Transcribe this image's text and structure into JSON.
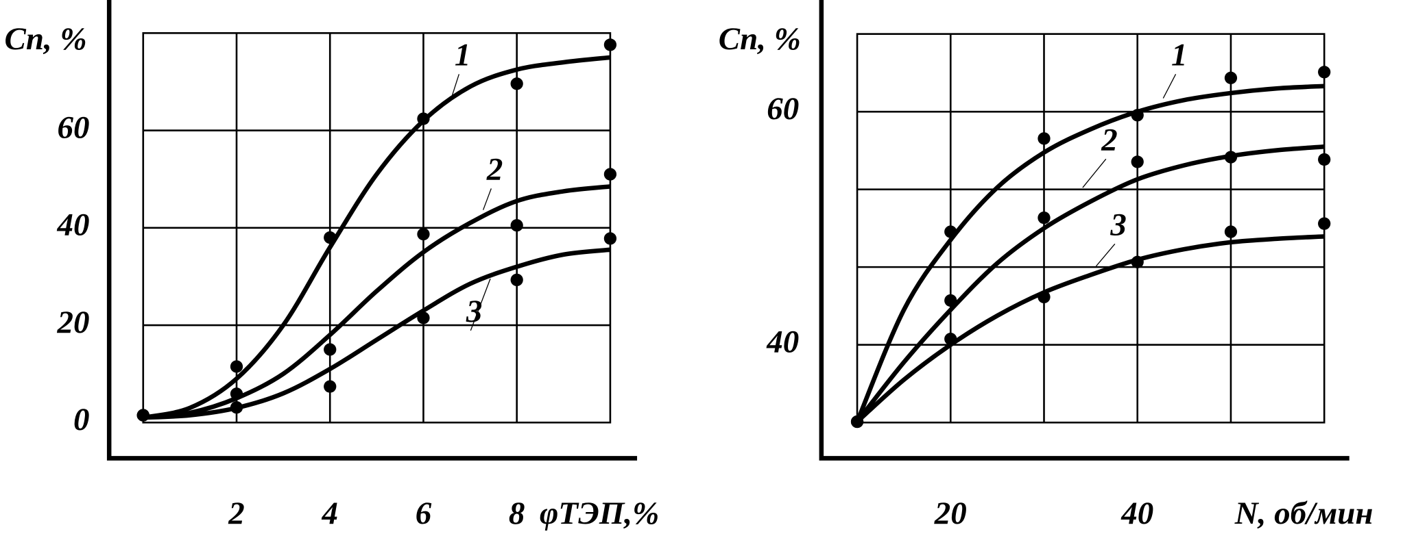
{
  "chart_data": [
    {
      "type": "line",
      "ylabel": "Cп, %",
      "xlabel": "φТЭП,%",
      "xlim": [
        0,
        10
      ],
      "ylim": [
        0,
        80
      ],
      "xticks": [
        2,
        4,
        6,
        8
      ],
      "yticks": [
        0,
        20,
        40,
        60
      ],
      "xgrid": [
        2,
        4,
        6,
        8
      ],
      "ygrid": [
        20,
        40,
        60
      ],
      "x": [
        0,
        2,
        4,
        6,
        8,
        10
      ],
      "curve_x": [
        0,
        1,
        2,
        3,
        4,
        5,
        6,
        7,
        8,
        9,
        10
      ],
      "series": [
        {
          "name": "1",
          "color": "#000000",
          "values": [
            1.5,
            11.5,
            38,
            62.4,
            69.6,
            77.6
          ],
          "curve": [
            1,
            3,
            9,
            20,
            36,
            51,
            62,
            69,
            72.5,
            74,
            75
          ]
        },
        {
          "name": "2",
          "color": "#000000",
          "values": [
            1.5,
            5.9,
            15,
            38.7,
            40.5,
            51
          ],
          "curve": [
            1,
            2,
            5,
            10,
            18,
            27,
            35,
            41,
            45.5,
            47.5,
            48.5
          ]
        },
        {
          "name": "3",
          "color": "#000000",
          "values": [
            1.5,
            3.1,
            7.4,
            21.5,
            29.3,
            37.8
          ],
          "curve": [
            1,
            1.5,
            3,
            6,
            11,
            17,
            23,
            28.5,
            32,
            34.5,
            35.5
          ]
        }
      ]
    },
    {
      "type": "line",
      "ylabel": "Cп, %",
      "xlabel": "N, об/мин",
      "xlim": [
        10,
        60
      ],
      "ylim": [
        33.33,
        66.67
      ],
      "xticks": [
        20,
        40
      ],
      "yticks": [
        40,
        60
      ],
      "xgrid": [
        20,
        30,
        40,
        50
      ],
      "ygrid": [
        40,
        46.67,
        53.33,
        60
      ],
      "x": [
        10,
        20,
        30,
        40,
        50,
        60
      ],
      "curve_x": [
        10,
        15,
        20,
        25,
        30,
        35,
        40,
        45,
        50,
        55,
        60
      ],
      "series": [
        {
          "name": "1",
          "color": "#000000",
          "values": [
            33.4,
            49.7,
            57.7,
            59.7,
            62.9,
            63.4
          ],
          "curve": [
            33.4,
            43,
            49,
            53.5,
            56.5,
            58.5,
            60,
            61,
            61.6,
            62,
            62.2
          ]
        },
        {
          "name": "2",
          "color": "#000000",
          "values": [
            33.4,
            43.8,
            50.9,
            55.7,
            56.1,
            55.9
          ],
          "curve": [
            33.4,
            38.5,
            43,
            47,
            50,
            52.3,
            54.2,
            55.4,
            56.2,
            56.7,
            57
          ]
        },
        {
          "name": "3",
          "color": "#000000",
          "values": [
            33.4,
            40.5,
            44.1,
            47.1,
            49.7,
            50.4
          ],
          "curve": [
            33.4,
            37,
            40,
            42.5,
            44.5,
            46,
            47.3,
            48.2,
            48.8,
            49.1,
            49.3
          ]
        }
      ]
    }
  ]
}
